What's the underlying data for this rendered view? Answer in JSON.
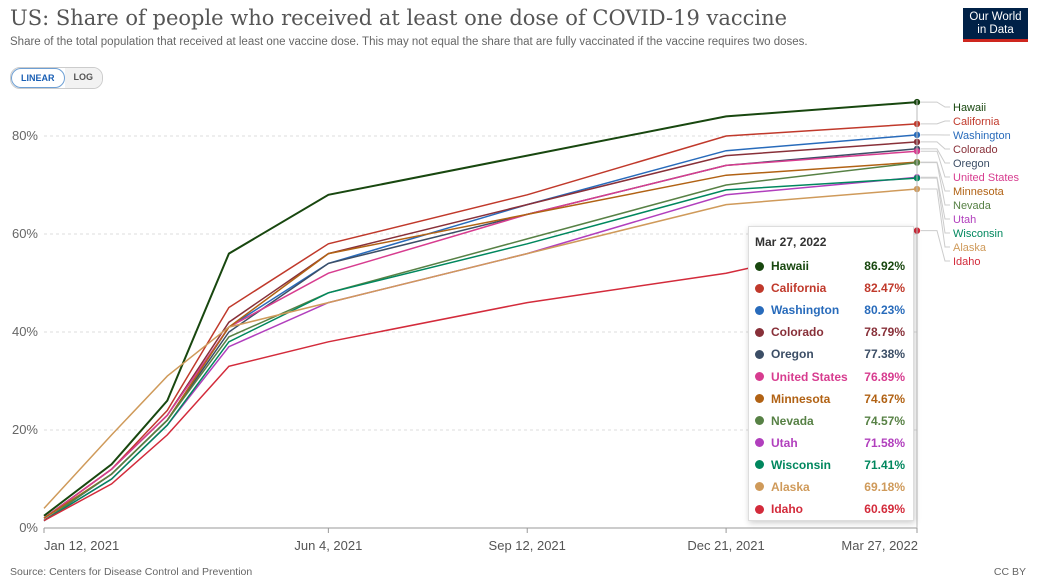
{
  "header": {
    "title": "US: Share of people who received at least one dose of COVID-19 vaccine",
    "subtitle": "Share of the total population that received at least one vaccine dose. This may not equal the share that are fully vaccinated if the vaccine requires two doses.",
    "logo_line1": "Our World",
    "logo_line2": "in Data"
  },
  "controls": {
    "linear_label": "LINEAR",
    "log_label": "LOG",
    "selected": "LINEAR"
  },
  "footer": {
    "source": "Source: Centers for Disease Control and Prevention",
    "license": "CC BY"
  },
  "tooltip": {
    "date": "Mar 27, 2022"
  },
  "chart_data": {
    "type": "line",
    "y_ticks": [
      "0%",
      "20%",
      "40%",
      "60%",
      "80%"
    ],
    "ylim": [
      0,
      90
    ],
    "x_ticks": [
      "Jan 12, 2021",
      "Jun 4, 2021",
      "Sep 12, 2021",
      "Dec 21, 2021",
      "Mar 27, 2022"
    ],
    "x_dates": [
      "2021-01-12",
      "2021-02-15",
      "2021-03-15",
      "2021-04-15",
      "2021-06-04",
      "2021-09-12",
      "2021-12-21",
      "2022-03-27"
    ],
    "series": [
      {
        "name": "Hawaii",
        "color": "#18470f",
        "display": "86.92%",
        "values": [
          2.5,
          13,
          26,
          56,
          68,
          76,
          84,
          86.92
        ]
      },
      {
        "name": "California",
        "color": "#c0392b",
        "display": "82.47%",
        "values": [
          2,
          12,
          24,
          45,
          58,
          68,
          80,
          82.47
        ]
      },
      {
        "name": "Washington",
        "color": "#286bbb",
        "display": "80.23%",
        "values": [
          1.5,
          11,
          22,
          41,
          54,
          66,
          77,
          80.23
        ]
      },
      {
        "name": "Colorado",
        "color": "#883039",
        "display": "78.79%",
        "values": [
          2,
          12,
          23,
          42,
          56,
          66,
          76,
          78.79
        ]
      },
      {
        "name": "Oregon",
        "color": "#3c4e66",
        "display": "77.38%",
        "values": [
          1.5,
          11,
          22,
          40,
          54,
          64,
          74,
          77.38
        ]
      },
      {
        "name": "United States",
        "color": "#d73c8f",
        "display": "76.89%",
        "values": [
          2,
          12,
          23,
          41,
          52,
          64,
          74,
          76.89
        ]
      },
      {
        "name": "Minnesota",
        "color": "#b16214",
        "display": "74.67%",
        "values": [
          2,
          11,
          22,
          41,
          56,
          64,
          72,
          74.67
        ]
      },
      {
        "name": "Nevada",
        "color": "#578145",
        "display": "74.57%",
        "values": [
          1.5,
          11,
          22,
          39,
          48,
          59,
          70,
          74.57
        ]
      },
      {
        "name": "Utah",
        "color": "#b13fbd",
        "display": "71.58%",
        "values": [
          1.5,
          10,
          21,
          37,
          46,
          56,
          68,
          71.58
        ]
      },
      {
        "name": "Wisconsin",
        "color": "#00875e",
        "display": "71.41%",
        "values": [
          1.5,
          10,
          21,
          38,
          48,
          58,
          69,
          71.41
        ]
      },
      {
        "name": "Alaska",
        "color": "#cf9a5a",
        "display": "69.18%",
        "values": [
          4,
          19,
          31,
          41,
          46,
          56,
          66,
          69.18
        ]
      },
      {
        "name": "Idaho",
        "color": "#d32b3b",
        "display": "60.69%",
        "values": [
          1.5,
          9,
          19,
          33,
          38,
          46,
          52,
          60.69
        ]
      }
    ]
  }
}
